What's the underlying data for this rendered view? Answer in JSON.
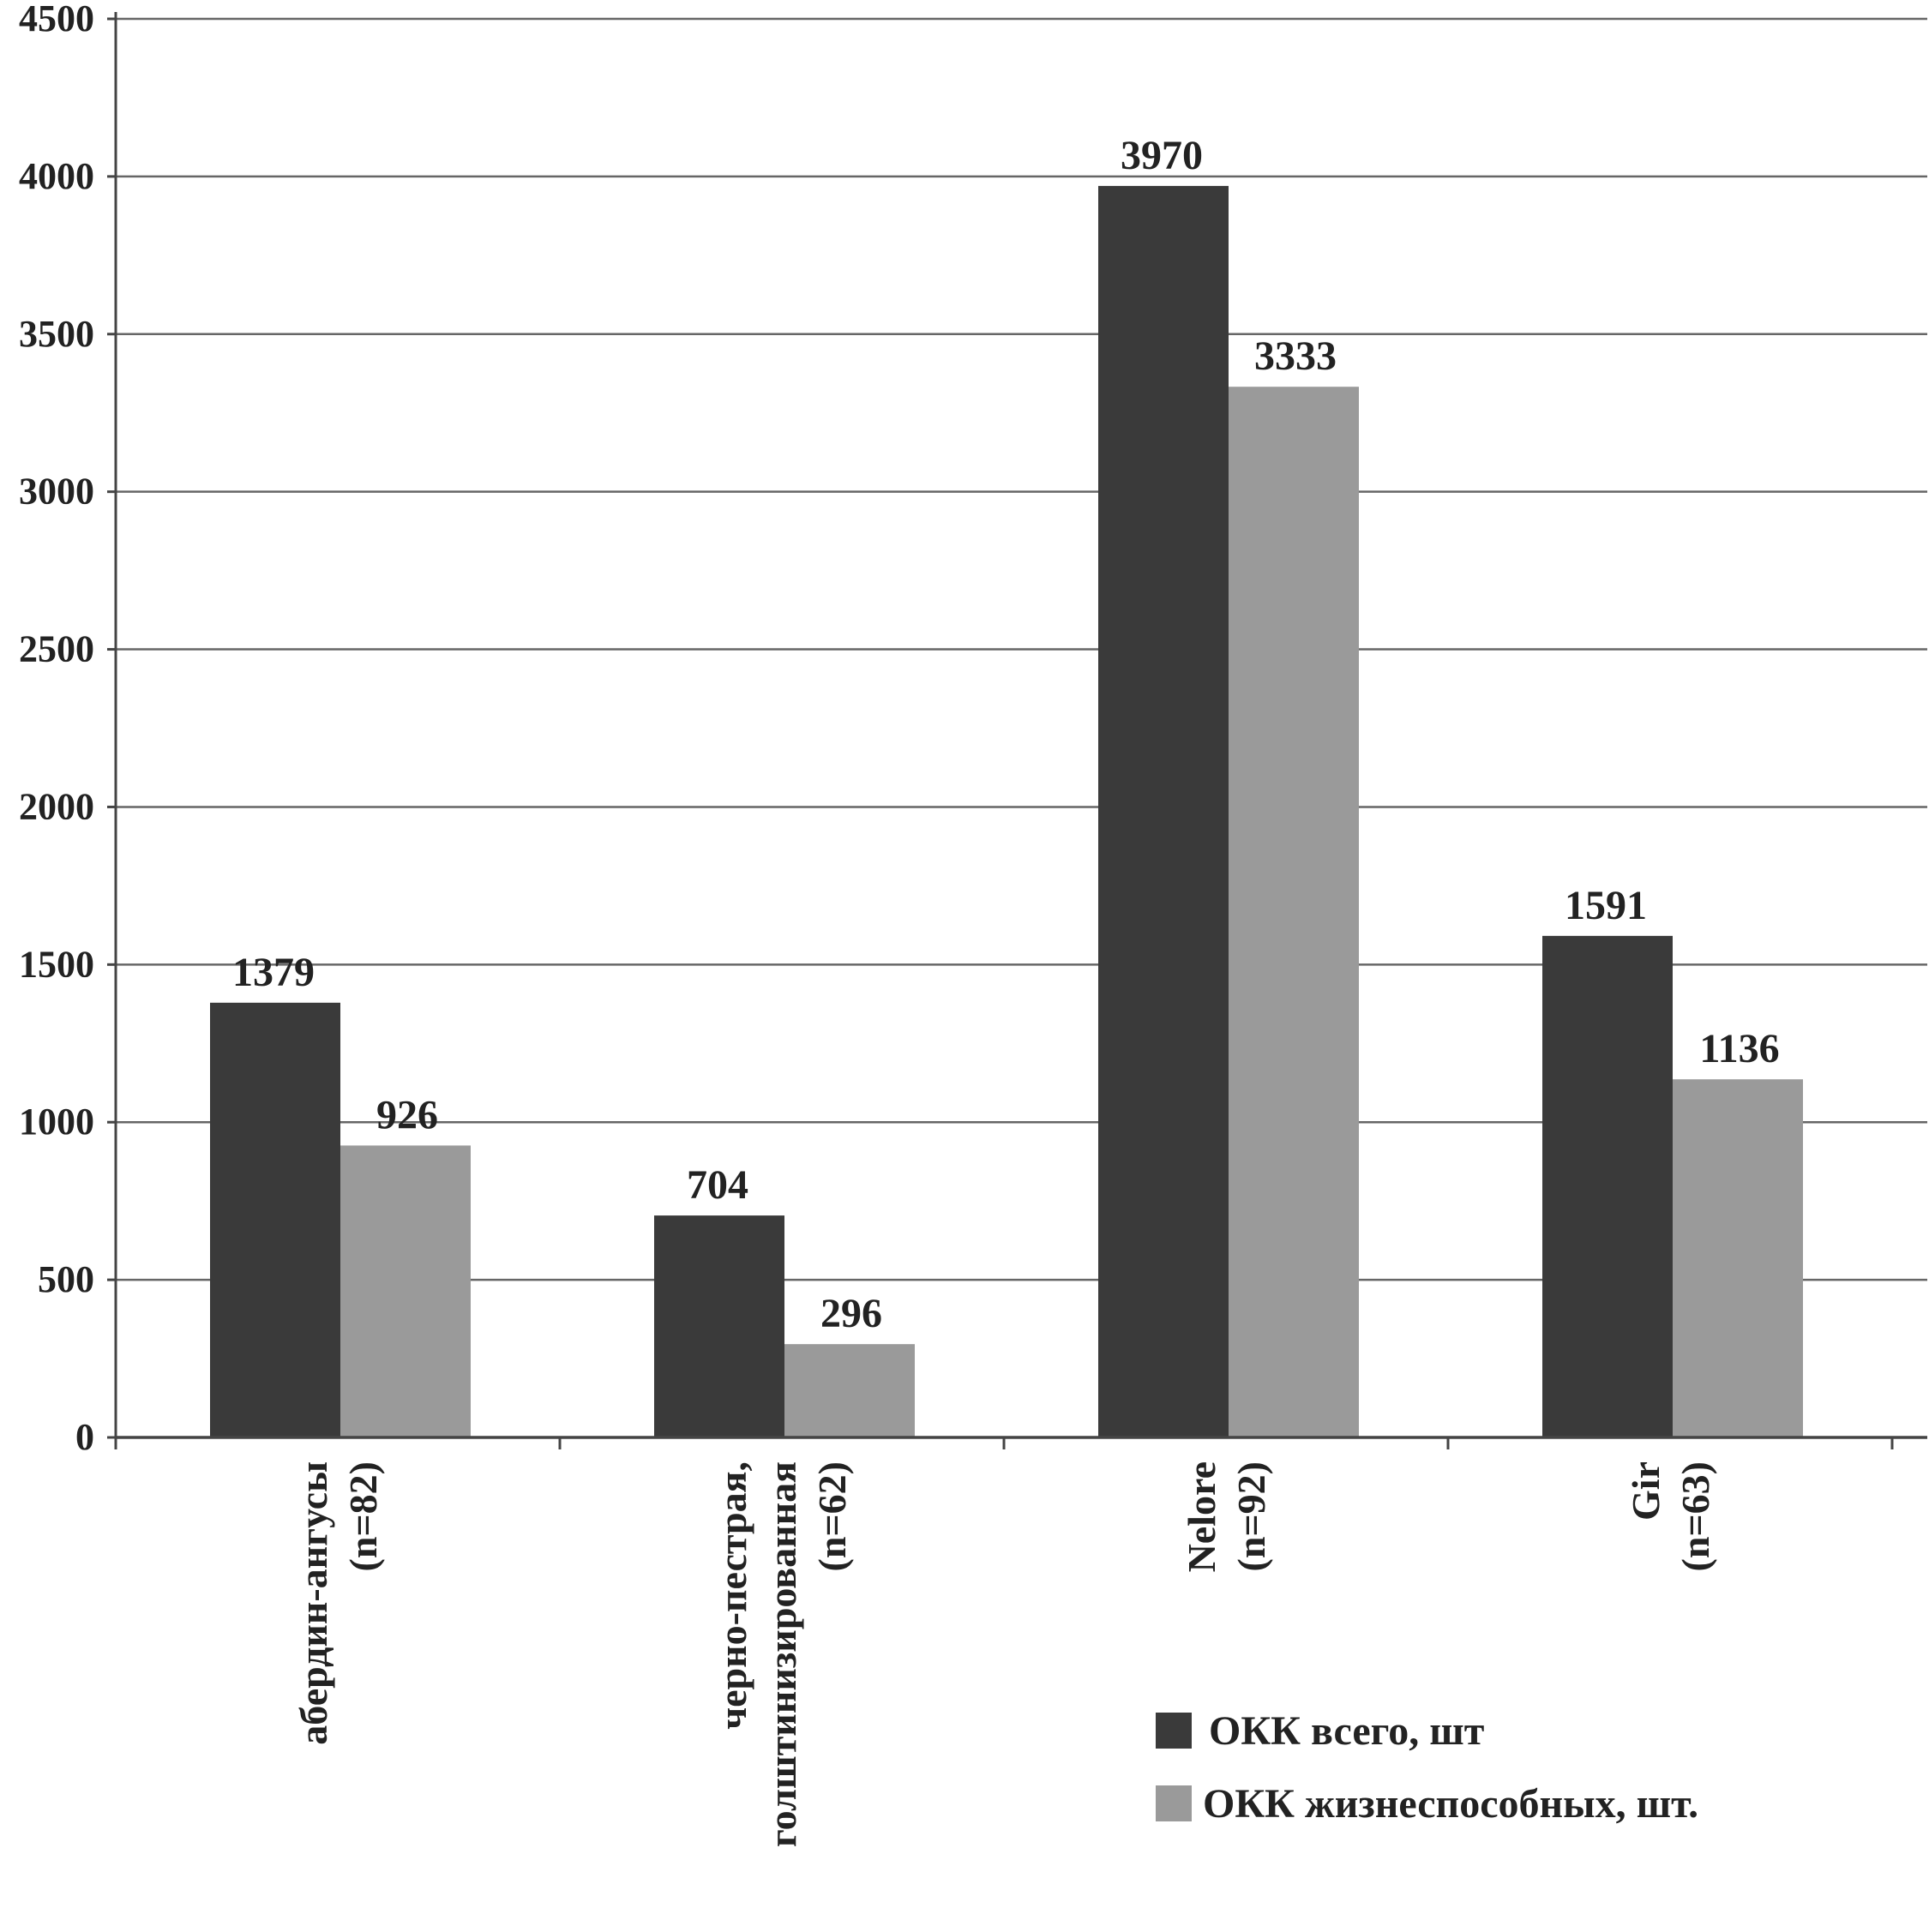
{
  "chart_data": {
    "type": "bar",
    "categories": [
      [
        "абердин-ангусы",
        "(n=82)"
      ],
      [
        "черно-пестрая,",
        "голштинизированная",
        "(n=62)"
      ],
      [
        "Nelore",
        "(n=92)"
      ],
      [
        "Gir",
        "(n=63)"
      ]
    ],
    "series": [
      {
        "name": "ОКК всего, шт",
        "values": [
          1379,
          704,
          3970,
          1591
        ],
        "color": "#3a3a3a"
      },
      {
        "name": "ОКК жизнеспособных, шт.",
        "values": [
          926,
          296,
          3333,
          1136
        ],
        "color": "#9a9a9a"
      }
    ],
    "ylim": [
      0,
      4500
    ],
    "yticks": [
      0,
      500,
      1000,
      1500,
      2000,
      2500,
      3000,
      3500,
      4000,
      4500
    ],
    "grid": true,
    "legend_position": "bottom-right"
  }
}
